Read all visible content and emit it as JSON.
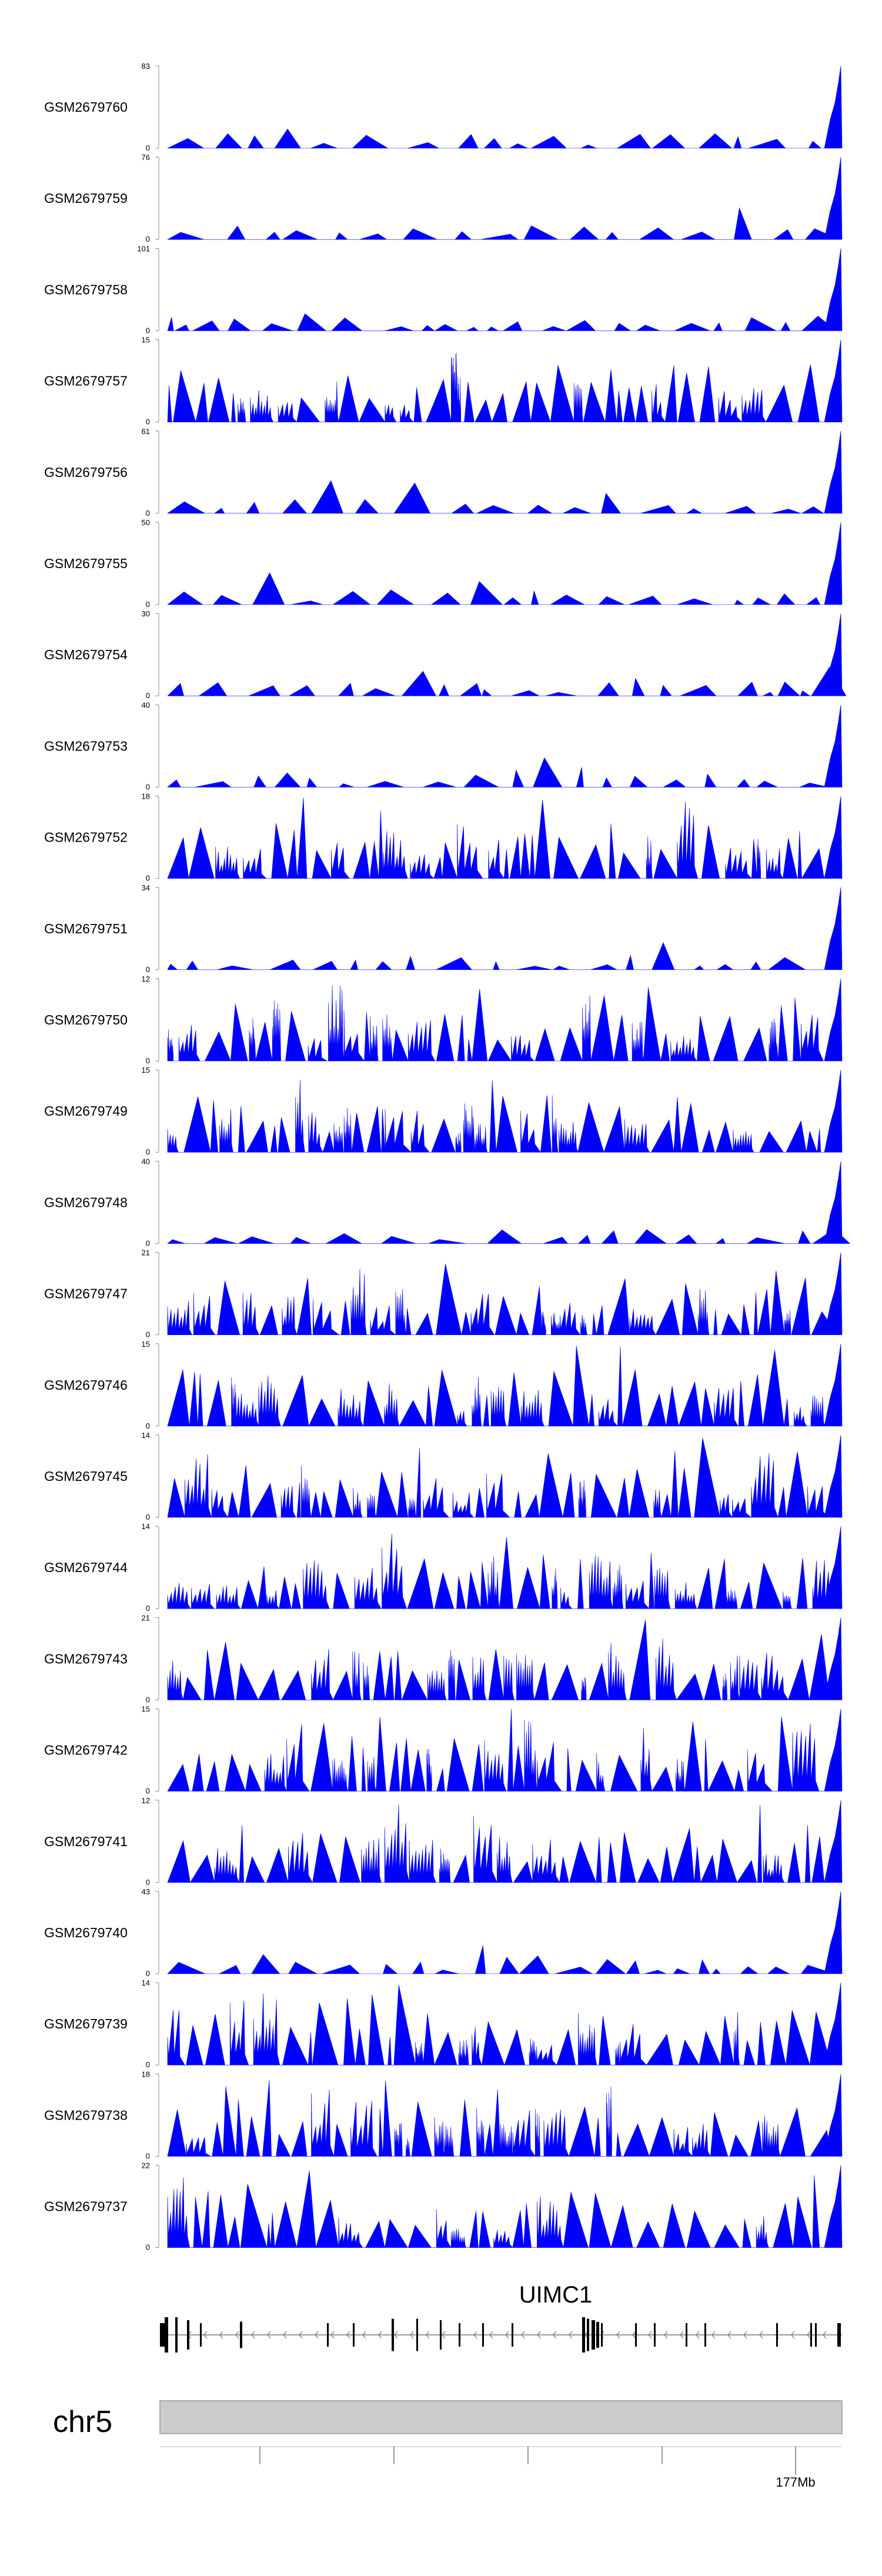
{
  "chart_data": {
    "type": "area",
    "title": "",
    "track_color": "#0000ff",
    "tracks": [
      {
        "name": "GSM2679760",
        "ymax": 83,
        "ymin": 0
      },
      {
        "name": "GSM2679759",
        "ymax": 76,
        "ymin": 0
      },
      {
        "name": "GSM2679758",
        "ymax": 101,
        "ymin": 0
      },
      {
        "name": "GSM2679757",
        "ymax": 15,
        "ymin": 0
      },
      {
        "name": "GSM2679756",
        "ymax": 61,
        "ymin": 0
      },
      {
        "name": "GSM2679755",
        "ymax": 50,
        "ymin": 0
      },
      {
        "name": "GSM2679754",
        "ymax": 30,
        "ymin": 0
      },
      {
        "name": "GSM2679753",
        "ymax": 40,
        "ymin": 0
      },
      {
        "name": "GSM2679752",
        "ymax": 18,
        "ymin": 0
      },
      {
        "name": "GSM2679751",
        "ymax": 34,
        "ymin": 0
      },
      {
        "name": "GSM2679750",
        "ymax": 12,
        "ymin": 0
      },
      {
        "name": "GSM2679749",
        "ymax": 15,
        "ymin": 0
      },
      {
        "name": "GSM2679748",
        "ymax": 40,
        "ymin": 0
      },
      {
        "name": "GSM2679747",
        "ymax": 21,
        "ymin": 0
      },
      {
        "name": "GSM2679746",
        "ymax": 15,
        "ymin": 0
      },
      {
        "name": "GSM2679745",
        "ymax": 14,
        "ymin": 0
      },
      {
        "name": "GSM2679744",
        "ymax": 14,
        "ymin": 0
      },
      {
        "name": "GSM2679743",
        "ymax": 21,
        "ymin": 0
      },
      {
        "name": "GSM2679742",
        "ymax": 15,
        "ymin": 0
      },
      {
        "name": "GSM2679741",
        "ymax": 12,
        "ymin": 0
      },
      {
        "name": "GSM2679740",
        "ymax": 43,
        "ymin": 0
      },
      {
        "name": "GSM2679739",
        "ymax": 14,
        "ymin": 0
      },
      {
        "name": "GSM2679738",
        "ymax": 18,
        "ymin": 0
      },
      {
        "name": "GSM2679737",
        "ymax": 22,
        "ymin": 0
      }
    ],
    "gene": {
      "name": "UIMC1",
      "strand": "-"
    },
    "chromosome": "chr5",
    "axis_tick_label": "177Mb"
  }
}
